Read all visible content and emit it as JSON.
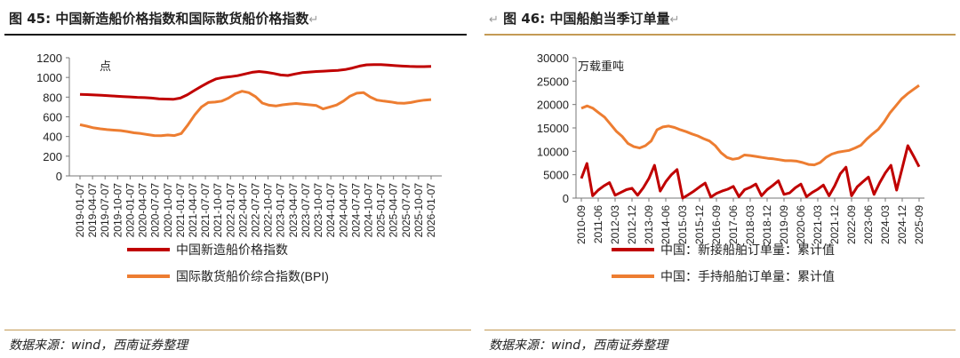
{
  "left": {
    "fig_label": "图 45:",
    "fig_title": "中国新造船价格指数和国际散货船价格指数",
    "unit": "点",
    "source": "数据来源：wind，西南证券整理",
    "chart_data": {
      "type": "line",
      "ylim": [
        0,
        1200
      ],
      "yticks": [
        0,
        200,
        400,
        600,
        800,
        1000,
        1200
      ],
      "x_tick_labels": [
        "2019-01-07",
        "2019-04-07",
        "2019-07-07",
        "2019-10-07",
        "2020-01-07",
        "2020-04-07",
        "2020-07-07",
        "2020-10-07",
        "2021-01-07",
        "2021-04-07",
        "2021-07-07",
        "2021-10-07",
        "2022-01-07",
        "2022-04-07",
        "2022-07-07",
        "2022-10-07",
        "2023-01-07",
        "2023-04-07",
        "2023-07-07",
        "2023-10-07",
        "2024-01-07",
        "2024-04-07",
        "2024-07-07",
        "2024-10-07",
        "2025-01-07",
        "2025-04-07",
        "2025-07-07",
        "2025-10-07",
        "2026-01-07"
      ],
      "series": [
        {
          "name": "中国新造船价格指数",
          "color": "#c00000",
          "values": [
            828,
            826,
            822,
            818,
            814,
            810,
            806,
            802,
            798,
            795,
            790,
            782,
            780,
            778,
            790,
            825,
            870,
            912,
            952,
            985,
            1000,
            1008,
            1018,
            1035,
            1052,
            1060,
            1052,
            1040,
            1025,
            1020,
            1035,
            1048,
            1055,
            1060,
            1064,
            1068,
            1072,
            1080,
            1095,
            1115,
            1128,
            1130,
            1130,
            1125,
            1120,
            1115,
            1112,
            1110,
            1110,
            1112
          ]
        },
        {
          "name": "国际散货船价综合指数(BPI)",
          "color": "#ed7d31",
          "values": [
            520,
            505,
            488,
            478,
            470,
            465,
            460,
            450,
            438,
            430,
            420,
            410,
            408,
            415,
            410,
            430,
            520,
            620,
            700,
            745,
            750,
            760,
            790,
            835,
            860,
            845,
            805,
            740,
            718,
            710,
            722,
            730,
            735,
            728,
            722,
            715,
            680,
            700,
            720,
            760,
            810,
            840,
            845,
            800,
            770,
            760,
            752,
            740,
            738,
            745,
            760,
            770,
            775
          ]
        }
      ]
    }
  },
  "right": {
    "fig_label": "图 46:",
    "fig_title": "中国船舶当季订单量",
    "unit": "万载重吨",
    "source": "数据来源：wind，西南证券整理",
    "chart_data": {
      "type": "line",
      "ylim": [
        0,
        30000
      ],
      "yticks": [
        0,
        5000,
        10000,
        15000,
        20000,
        25000,
        30000
      ],
      "x_tick_labels": [
        "2010-09",
        "2011-06",
        "2012-03",
        "2012-12",
        "2013-09",
        "2014-06",
        "2015-03",
        "2015-12",
        "2016-09",
        "2017-06",
        "2018-03",
        "2018-12",
        "2019-09",
        "2020-06",
        "2021-03",
        "2021-12",
        "2022-09",
        "2023-06",
        "2024-03",
        "2024-12",
        "2025-09"
      ],
      "series": [
        {
          "name": "中国：新接船舶订单量：累计值",
          "color": "#c00000",
          "values": [
            4200,
            7400,
            500,
            1700,
            2600,
            3300,
            600,
            1200,
            1800,
            2100,
            600,
            2200,
            4200,
            7000,
            1500,
            3500,
            5000,
            6100,
            0,
            700,
            1500,
            2400,
            3200,
            200,
            1000,
            1500,
            1900,
            2500,
            300,
            1800,
            2300,
            3000,
            500,
            1800,
            2700,
            3700,
            800,
            1100,
            2200,
            3000,
            300,
            1200,
            1900,
            2800,
            500,
            2600,
            5200,
            6600,
            500,
            2400,
            3500,
            4500,
            800,
            3300,
            5400,
            7000,
            1700,
            6400,
            11200,
            9000,
            6700
          ]
        },
        {
          "name": "中国：手持船舶订单量：累计值",
          "color": "#ed7d31",
          "values": [
            19200,
            19700,
            19200,
            18200,
            17300,
            15800,
            14300,
            13200,
            11700,
            11000,
            10700,
            11200,
            12200,
            14600,
            15200,
            15400,
            15100,
            14600,
            14200,
            13700,
            13300,
            12700,
            12200,
            11200,
            9700,
            8700,
            8300,
            8500,
            9200,
            9100,
            8900,
            8700,
            8500,
            8400,
            8200,
            8000,
            8000,
            7900,
            7600,
            7200,
            7100,
            7600,
            8700,
            9400,
            9800,
            10000,
            10200,
            10700,
            11300,
            12600,
            13700,
            14700,
            16300,
            18200,
            19700,
            21200,
            22300,
            23200,
            24100
          ]
        }
      ]
    }
  }
}
